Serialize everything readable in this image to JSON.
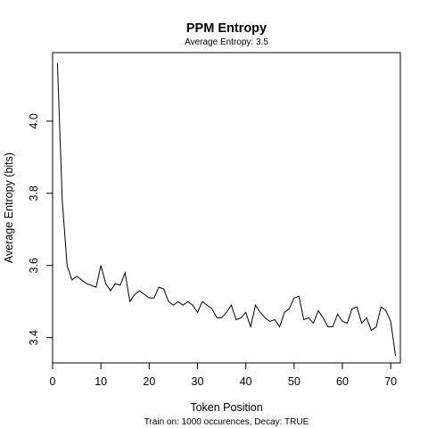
{
  "chart_data": {
    "type": "line",
    "title": "PPM Entropy",
    "subtitle": "Average Entropy: 3.5",
    "xlabel": "Token Position",
    "ylabel": "Average Entropy (bits)",
    "footer": "Train on: 1000 occurences, Decay: TRUE",
    "xlim": [
      0,
      72
    ],
    "ylim": [
      3.33,
      4.19
    ],
    "x_ticks": [
      0,
      10,
      20,
      30,
      40,
      50,
      60,
      70
    ],
    "y_ticks": [
      3.4,
      3.6,
      3.8,
      4.0
    ],
    "y_tick_labels": [
      "3.4",
      "3.6",
      "3.8",
      "4.0"
    ],
    "grid": false,
    "legend": "none",
    "line_color": "#000000",
    "series": [
      {
        "x": [
          1,
          2,
          3,
          4,
          5,
          6,
          7,
          8,
          9,
          10,
          11,
          12,
          13,
          14,
          15,
          16,
          17,
          18,
          19,
          20,
          21,
          22,
          23,
          24,
          25,
          26,
          27,
          28,
          29,
          30,
          31,
          32,
          33,
          34,
          35,
          36,
          37,
          38,
          39,
          40,
          41,
          42,
          43,
          44,
          45,
          46,
          47,
          48,
          49,
          50,
          51,
          52,
          53,
          54,
          55,
          56,
          57,
          58,
          59,
          60,
          61,
          62,
          63,
          64,
          65,
          66,
          67,
          68,
          69,
          70,
          71
        ],
        "values": [
          4.16,
          3.78,
          3.6,
          3.56,
          3.57,
          3.56,
          3.55,
          3.545,
          3.54,
          3.6,
          3.55,
          3.53,
          3.55,
          3.545,
          3.58,
          3.5,
          3.52,
          3.53,
          3.52,
          3.51,
          3.51,
          3.54,
          3.535,
          3.5,
          3.49,
          3.5,
          3.49,
          3.5,
          3.49,
          3.47,
          3.5,
          3.49,
          3.48,
          3.455,
          3.455,
          3.47,
          3.49,
          3.45,
          3.455,
          3.47,
          3.43,
          3.49,
          3.47,
          3.455,
          3.445,
          3.45,
          3.43,
          3.47,
          3.48,
          3.51,
          3.515,
          3.45,
          3.455,
          3.44,
          3.475,
          3.455,
          3.43,
          3.43,
          3.465,
          3.445,
          3.44,
          3.48,
          3.485,
          3.44,
          3.455,
          3.42,
          3.43,
          3.485,
          3.475,
          3.445,
          3.35
        ]
      }
    ]
  }
}
